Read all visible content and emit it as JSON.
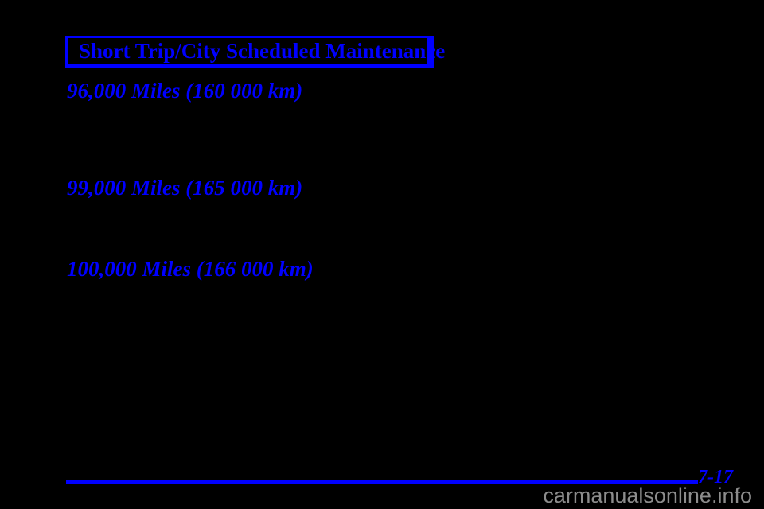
{
  "document": {
    "header": {
      "title": "Short Trip/City Scheduled Maintenance"
    },
    "sections": [
      {
        "heading": "96,000 Miles (160 000 km)"
      },
      {
        "heading": "99,000 Miles (165 000 km)"
      },
      {
        "heading": "100,000 Miles (166 000 km)"
      }
    ],
    "footer": {
      "page_number": "7-17"
    },
    "watermark": {
      "label": "carmanualsonline.info"
    },
    "colors": {
      "accent_blue": "#0000ff",
      "background": "#000000",
      "watermark_gray": "#8c8c8c"
    }
  }
}
